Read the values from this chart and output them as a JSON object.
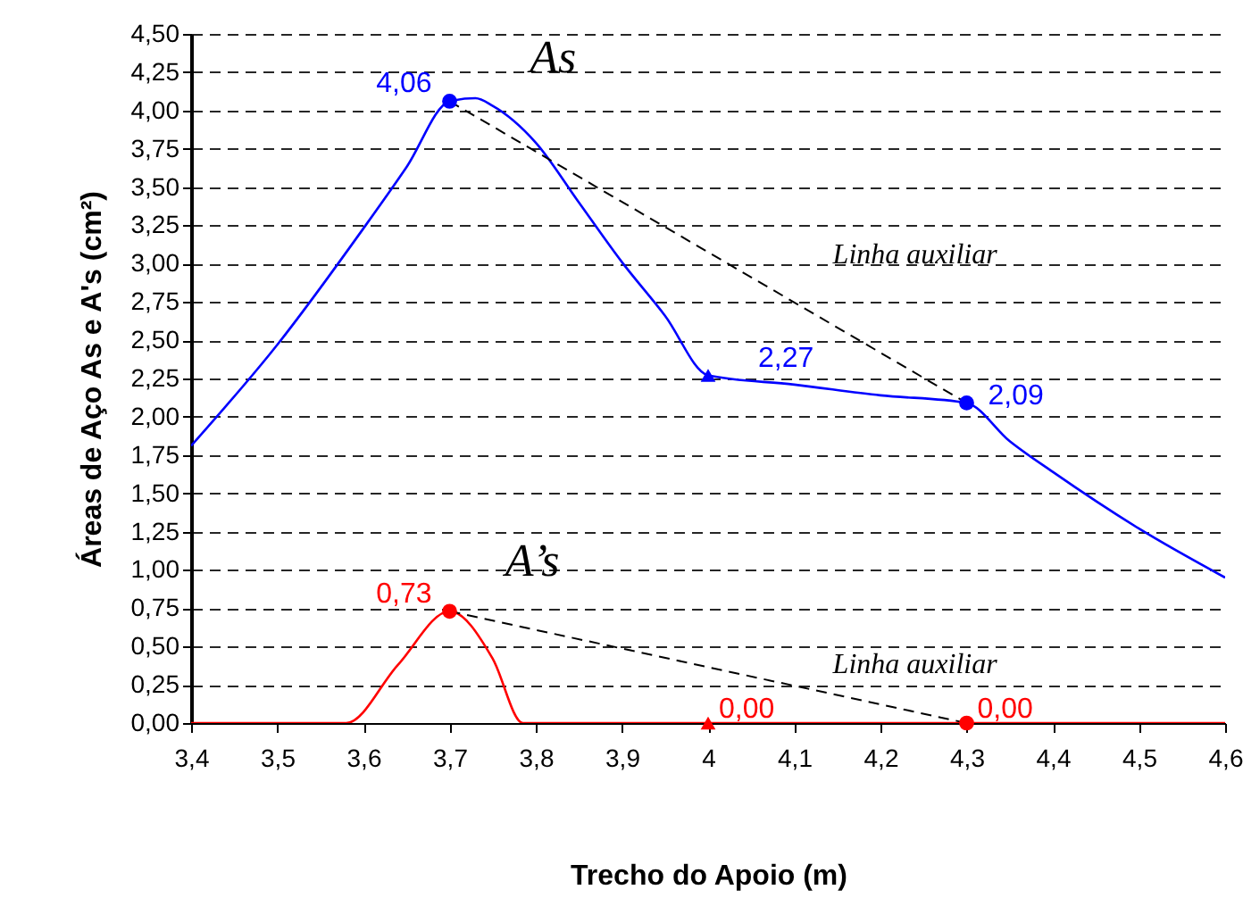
{
  "chart_data": {
    "type": "line",
    "xlabel": "Trecho do Apoio (m)",
    "ylabel": "Áreas de Aço As e A's (cm²)",
    "xlim": [
      3.4,
      4.6
    ],
    "ylim": [
      0,
      4.5
    ],
    "xticks": [
      {
        "value": 3.4,
        "label": "3,4"
      },
      {
        "value": 3.5,
        "label": "3,5"
      },
      {
        "value": 3.6,
        "label": "3,6"
      },
      {
        "value": 3.7,
        "label": "3,7"
      },
      {
        "value": 3.8,
        "label": "3,8"
      },
      {
        "value": 3.9,
        "label": "3,9"
      },
      {
        "value": 4,
        "label": "4"
      },
      {
        "value": 4.1,
        "label": "4,1"
      },
      {
        "value": 4.2,
        "label": "4,2"
      },
      {
        "value": 4.3,
        "label": "4,3"
      },
      {
        "value": 4.4,
        "label": "4,4"
      },
      {
        "value": 4.5,
        "label": "4,5"
      },
      {
        "value": 4.6,
        "label": "4,6"
      }
    ],
    "yticks": [
      {
        "value": 0,
        "label": "0,00"
      },
      {
        "value": 0.25,
        "label": "0,25"
      },
      {
        "value": 0.5,
        "label": "0,50"
      },
      {
        "value": 0.75,
        "label": "0,75"
      },
      {
        "value": 1,
        "label": "1,00"
      },
      {
        "value": 1.25,
        "label": "1,25"
      },
      {
        "value": 1.5,
        "label": "1,50"
      },
      {
        "value": 1.75,
        "label": "1,75"
      },
      {
        "value": 2,
        "label": "2,00"
      },
      {
        "value": 2.25,
        "label": "2,25"
      },
      {
        "value": 2.5,
        "label": "2,50"
      },
      {
        "value": 2.75,
        "label": "2,75"
      },
      {
        "value": 3,
        "label": "3,00"
      },
      {
        "value": 3.25,
        "label": "3,25"
      },
      {
        "value": 3.5,
        "label": "3,50"
      },
      {
        "value": 3.75,
        "label": "3,75"
      },
      {
        "value": 4,
        "label": "4,00"
      },
      {
        "value": 4.25,
        "label": "4,25"
      },
      {
        "value": 4.5,
        "label": "4,50"
      }
    ],
    "grid": "y",
    "series": [
      {
        "color": "#0000ff",
        "line_style": "solid",
        "x": [
          3.4,
          3.5,
          3.6,
          3.65,
          3.7,
          3.73,
          3.75,
          3.8,
          3.85,
          3.9,
          3.95,
          4.0,
          4.1,
          4.2,
          4.3,
          4.35,
          4.4,
          4.5,
          4.6
        ],
        "values": [
          1.81,
          2.47,
          3.23,
          3.63,
          4.06,
          4.08,
          4.03,
          3.79,
          3.4,
          3.01,
          2.66,
          2.27,
          2.21,
          2.14,
          2.09,
          1.84,
          1.64,
          1.27,
          0.95
        ]
      },
      {
        "color": "#ff0000",
        "line_style": "solid",
        "x": [
          3.4,
          3.58,
          3.64,
          3.7,
          3.75,
          3.785,
          4.0,
          4.3,
          4.6
        ],
        "values": [
          0,
          0,
          0.38,
          0.73,
          0.42,
          0,
          0,
          0,
          0
        ]
      },
      {
        "color": "#000000",
        "line_style": "dashed",
        "x": [
          3.7,
          4.3
        ],
        "values": [
          4.06,
          2.09
        ]
      },
      {
        "color": "#000000",
        "line_style": "dashed",
        "x": [
          3.7,
          4.3
        ],
        "values": [
          0.73,
          0
        ]
      },
      {
        "type": "scatter",
        "color": "#0000ff",
        "marker": "circle",
        "x": [
          3.7,
          4.3
        ],
        "values": [
          4.06,
          2.09
        ],
        "value_labels": [
          "4,06",
          "2,09"
        ]
      },
      {
        "type": "scatter",
        "color": "#0000ff",
        "marker": "triangle",
        "x": [
          4.0
        ],
        "values": [
          2.27
        ],
        "value_labels": [
          "2,27"
        ]
      },
      {
        "type": "scatter",
        "color": "#ff0000",
        "marker": "circle",
        "x": [
          3.7,
          4.3
        ],
        "values": [
          0.73,
          0
        ],
        "value_labels": [
          "0,73",
          "0,00"
        ]
      },
      {
        "type": "scatter",
        "color": "#ff0000",
        "marker": "triangle",
        "x": [
          4.0
        ],
        "values": [
          0
        ],
        "value_labels": [
          "0,00"
        ]
      }
    ],
    "annotations": [
      "As",
      "Linha auxiliar",
      "A’s",
      "Linha auxiliar"
    ]
  }
}
